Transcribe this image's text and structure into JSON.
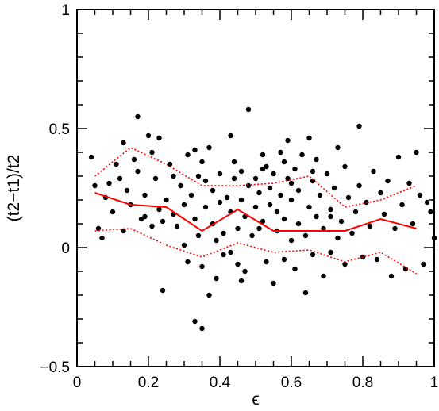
{
  "chart_data": {
    "type": "scatter",
    "xlabel": "ϵ",
    "ylabel": "(t2−t1)/t2",
    "xlim": [
      0,
      1
    ],
    "ylim": [
      -0.5,
      1
    ],
    "x_ticks": [
      0,
      0.2,
      0.4,
      0.6,
      0.8,
      1
    ],
    "y_ticks": [
      -0.5,
      0,
      0.5,
      1
    ],
    "x_tick_labels": [
      "0",
      "0.2",
      "0.4",
      "0.6",
      "0.8",
      "1"
    ],
    "y_tick_labels": [
      "−0.5",
      "0",
      "0.5",
      "1"
    ],
    "grid": false,
    "colors": {
      "points": "#000000",
      "lines": "#ff0000",
      "axes": "#000000"
    },
    "series": [
      {
        "kind": "points",
        "points": [
          [
            0.04,
            0.38
          ],
          [
            0.05,
            0.26
          ],
          [
            0.06,
            0.08
          ],
          [
            0.07,
            0.04
          ],
          [
            0.08,
            0.21
          ],
          [
            0.09,
            0.27
          ],
          [
            0.1,
            0.15
          ],
          [
            0.11,
            0.35
          ],
          [
            0.12,
            0.29
          ],
          [
            0.13,
            0.44
          ],
          [
            0.14,
            0.24
          ],
          [
            0.15,
            0.18
          ],
          [
            0.16,
            0.37
          ],
          [
            0.17,
            0.55
          ],
          [
            0.17,
            0.32
          ],
          [
            0.18,
            0.12
          ],
          [
            0.19,
            0.22
          ],
          [
            0.2,
            0.47
          ],
          [
            0.21,
            0.4
          ],
          [
            0.21,
            0.09
          ],
          [
            0.22,
            0.29
          ],
          [
            0.23,
            0.46
          ],
          [
            0.23,
            0.16
          ],
          [
            0.24,
            0.11
          ],
          [
            0.24,
            -0.18
          ],
          [
            0.25,
            0.2
          ],
          [
            0.26,
            0.35
          ],
          [
            0.27,
            0.14
          ],
          [
            0.28,
            0.09
          ],
          [
            0.29,
            0.26
          ],
          [
            0.3,
            0.18
          ],
          [
            0.3,
            0.01
          ],
          [
            0.31,
            0.39
          ],
          [
            0.31,
            -0.06
          ],
          [
            0.32,
            0.22
          ],
          [
            0.33,
            0.41
          ],
          [
            0.33,
            0.12
          ],
          [
            0.33,
            -0.31
          ],
          [
            0.34,
            0.05
          ],
          [
            0.34,
            0.3
          ],
          [
            0.35,
            0.36
          ],
          [
            0.35,
            -0.08
          ],
          [
            0.35,
            -0.34
          ],
          [
            0.36,
            0.17
          ],
          [
            0.36,
            0.28
          ],
          [
            0.37,
            0.42
          ],
          [
            0.37,
            -0.2
          ],
          [
            0.38,
            0.1
          ],
          [
            0.38,
            0.24
          ],
          [
            0.39,
            0.03
          ],
          [
            0.39,
            -0.13
          ],
          [
            0.4,
            0.31
          ],
          [
            0.4,
            0.19
          ],
          [
            0.41,
            0.06
          ],
          [
            0.41,
            -0.03
          ],
          [
            0.42,
            0.21
          ],
          [
            0.43,
            0.15
          ],
          [
            0.43,
            -0.02
          ],
          [
            0.44,
            0.29
          ],
          [
            0.44,
            0.36
          ],
          [
            0.45,
            0.08
          ],
          [
            0.45,
            -0.07
          ],
          [
            0.46,
            0.32
          ],
          [
            0.46,
            0.2
          ],
          [
            0.47,
            0.13
          ],
          [
            0.47,
            -0.1
          ],
          [
            0.48,
            0.58
          ],
          [
            0.48,
            0.26
          ],
          [
            0.49,
            0.05
          ],
          [
            0.5,
            0.17
          ],
          [
            0.5,
            0.29
          ],
          [
            0.51,
            0.23
          ],
          [
            0.51,
            0.08
          ],
          [
            0.52,
            0.39
          ],
          [
            0.52,
            0.11
          ],
          [
            0.53,
            0.34
          ],
          [
            0.53,
            -0.06
          ],
          [
            0.54,
            0.18
          ],
          [
            0.54,
            0.25
          ],
          [
            0.55,
            -0.15
          ],
          [
            0.55,
            0.31
          ],
          [
            0.56,
            0.07
          ],
          [
            0.56,
            0.15
          ],
          [
            0.57,
            0.4
          ],
          [
            0.57,
            0.22
          ],
          [
            0.58,
            -0.05
          ],
          [
            0.58,
            0.12
          ],
          [
            0.59,
            0.29
          ],
          [
            0.59,
            0.45
          ],
          [
            0.6,
            0.03
          ],
          [
            0.6,
            0.2
          ],
          [
            0.61,
            0.33
          ],
          [
            0.61,
            -0.09
          ],
          [
            0.62,
            0.1
          ],
          [
            0.62,
            0.24
          ],
          [
            0.63,
            0.39
          ],
          [
            0.64,
            0.05
          ],
          [
            0.64,
            -0.19
          ],
          [
            0.65,
            0.46
          ],
          [
            0.65,
            0.17
          ],
          [
            0.66,
            0.28
          ],
          [
            0.66,
            -0.03
          ],
          [
            0.67,
            0.13
          ],
          [
            0.67,
            0.37
          ],
          [
            0.68,
            0.22
          ],
          [
            0.69,
            0.08
          ],
          [
            0.69,
            -0.12
          ],
          [
            0.7,
            0.31
          ],
          [
            0.71,
            0.16
          ],
          [
            0.71,
            -0.02
          ],
          [
            0.72,
            0.25
          ],
          [
            0.73,
            0.42
          ],
          [
            0.73,
            0.04
          ],
          [
            0.74,
            0.11
          ],
          [
            0.75,
            0.34
          ],
          [
            0.75,
            -0.07
          ],
          [
            0.76,
            0.21
          ],
          [
            0.77,
            0.06
          ],
          [
            0.78,
            0.15
          ],
          [
            0.79,
            0.51
          ],
          [
            0.79,
            0.26
          ],
          [
            0.8,
            -0.04
          ],
          [
            0.81,
            0.19
          ],
          [
            0.82,
            0.09
          ],
          [
            0.83,
            0.32
          ],
          [
            0.84,
            -0.05
          ],
          [
            0.85,
            0.23
          ],
          [
            0.86,
            0.14
          ],
          [
            0.87,
            0.28
          ],
          [
            0.88,
            -0.12
          ],
          [
            0.89,
            0.08
          ],
          [
            0.9,
            0.38
          ],
          [
            0.91,
            0.18
          ],
          [
            0.92,
            -0.09
          ],
          [
            0.93,
            0.27
          ],
          [
            0.94,
            0.1
          ],
          [
            0.95,
            0.4
          ],
          [
            0.96,
            0.22
          ],
          [
            0.97,
            -0.07
          ],
          [
            0.98,
            0.19
          ],
          [
            0.99,
            0.15
          ],
          [
            1.0,
            0.04
          ],
          [
            0.27,
            0.3
          ],
          [
            0.19,
            0.13
          ],
          [
            0.13,
            0.07
          ],
          [
            0.66,
            0.32
          ],
          [
            0.43,
            0.47
          ],
          [
            0.52,
            0.33
          ],
          [
            0.58,
            0.36
          ],
          [
            0.46,
            -0.14
          ],
          [
            0.71,
            0.13
          ],
          [
            0.6,
            0.27
          ]
        ]
      },
      {
        "kind": "solid",
        "x": [
          0.05,
          0.15,
          0.25,
          0.35,
          0.45,
          0.55,
          0.65,
          0.75,
          0.85,
          0.95
        ],
        "y": [
          0.23,
          0.18,
          0.17,
          0.07,
          0.16,
          0.07,
          0.07,
          0.07,
          0.12,
          0.08
        ]
      },
      {
        "kind": "dotted",
        "x": [
          0.05,
          0.15,
          0.25,
          0.35,
          0.45,
          0.55,
          0.65,
          0.75,
          0.85,
          0.95
        ],
        "y": [
          0.3,
          0.42,
          0.35,
          0.26,
          0.26,
          0.27,
          0.3,
          0.17,
          0.2,
          0.26
        ]
      },
      {
        "kind": "dotted",
        "x": [
          0.05,
          0.15,
          0.25,
          0.35,
          0.45,
          0.55,
          0.65,
          0.75,
          0.85,
          0.95
        ],
        "y": [
          0.07,
          0.08,
          0.01,
          -0.04,
          0.02,
          -0.02,
          -0.01,
          -0.06,
          -0.02,
          -0.11
        ]
      }
    ]
  }
}
